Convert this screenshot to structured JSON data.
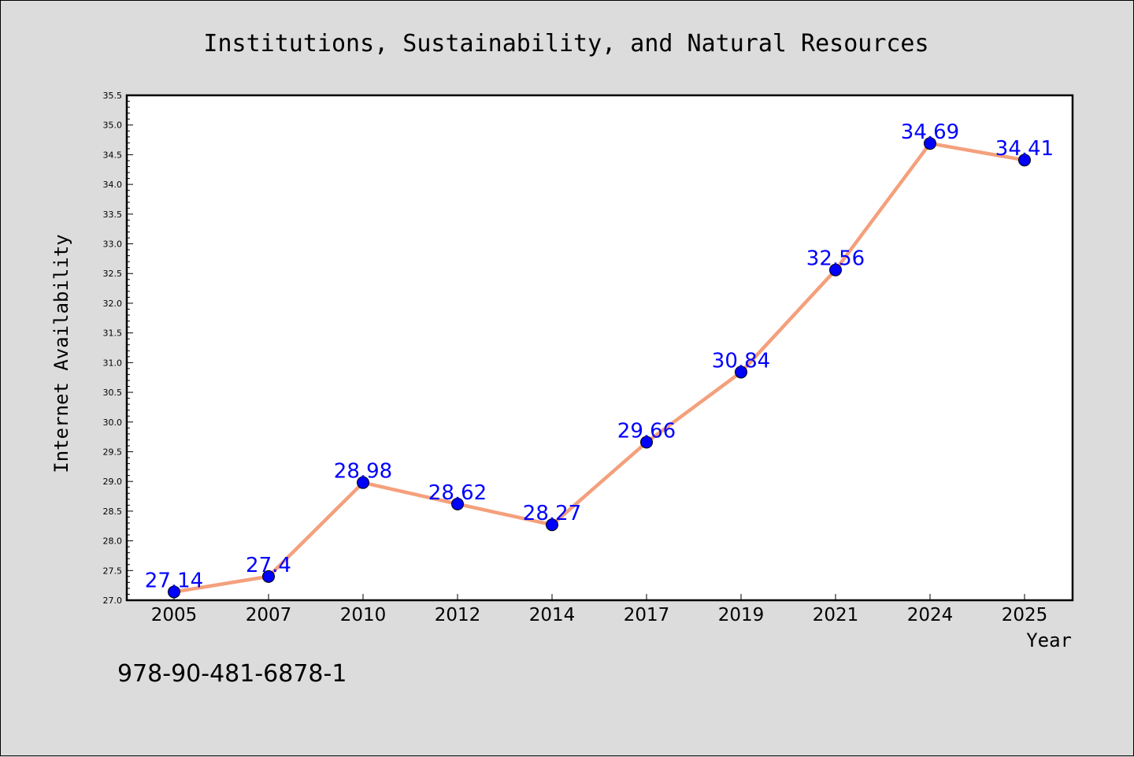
{
  "chart_data": {
    "type": "line",
    "title": "Institutions, Sustainability, and Natural Resources",
    "xlabel": "Year",
    "ylabel": "Internet Availability",
    "categories": [
      "2005",
      "2007",
      "2010",
      "2012",
      "2014",
      "2017",
      "2019",
      "2021",
      "2024",
      "2025"
    ],
    "series": [
      {
        "values": [
          27.14,
          27.4,
          28.98,
          28.62,
          28.27,
          29.66,
          30.84,
          32.56,
          34.69,
          34.41
        ],
        "data_labels": [
          "27.14",
          "27.4",
          "28.98",
          "28.62",
          "28.27",
          "29.66",
          "30.84",
          "32.56",
          "34.69",
          "34.41"
        ],
        "line_color": "#f4a07c",
        "marker_color": "#0000ff"
      }
    ],
    "ylim": [
      27.0,
      35.5
    ],
    "yticks": [
      "27.0",
      "27.5",
      "28.0",
      "28.5",
      "29.0",
      "29.5",
      "30.0",
      "30.5",
      "31.0",
      "31.5",
      "32.0",
      "32.5",
      "33.0",
      "33.5",
      "34.0",
      "34.5",
      "35.0",
      "35.5"
    ],
    "grid": false,
    "legend": "none",
    "background": "#dcdcdc",
    "plot_background": "#ffffff"
  },
  "footer": {
    "isbn": "978-90-481-6878-1"
  }
}
